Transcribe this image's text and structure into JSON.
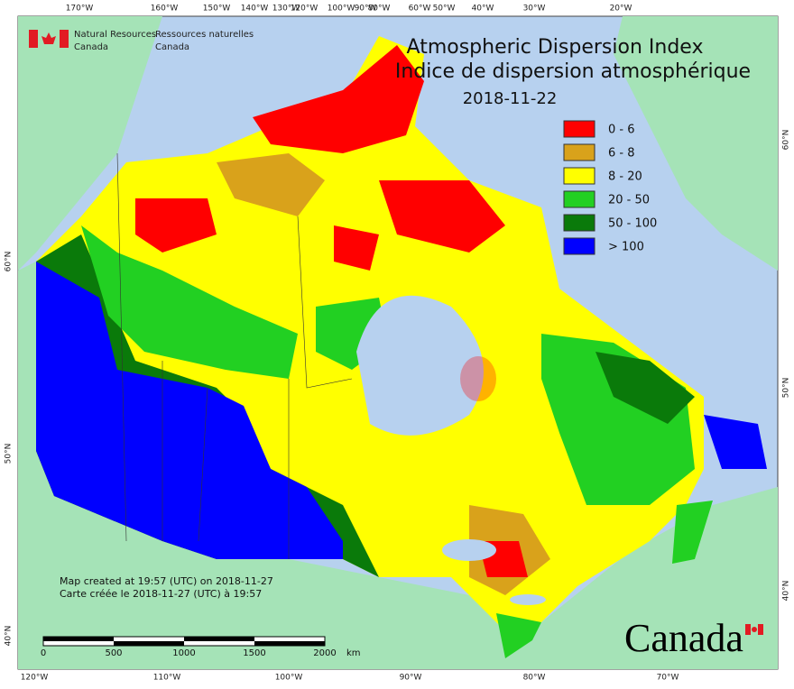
{
  "header": {
    "agency_en": [
      "Natural Resources",
      "Canada"
    ],
    "agency_fr": [
      "Ressources naturelles",
      "Canada"
    ]
  },
  "title": {
    "en": "Atmospheric Dispersion Index",
    "fr": "Indice de dispersion atmosphérique",
    "date": "2018-11-22"
  },
  "legend": [
    {
      "label": "0 - 6",
      "color": "#ff0000"
    },
    {
      "label": "6 - 8",
      "color": "#d9a21b"
    },
    {
      "label": "8 - 20",
      "color": "#ffff00"
    },
    {
      "label": "20 - 50",
      "color": "#22d022"
    },
    {
      "label": "50 - 100",
      "color": "#0a7a0a"
    },
    {
      "label": "> 100",
      "color": "#0000ff"
    }
  ],
  "graticule": {
    "top": [
      "170°W",
      "160°W",
      "150°W",
      "140°W",
      "130°W",
      "120°W",
      "100°W",
      "90°W",
      "80°W",
      "60°W",
      "50°W",
      "40°W",
      "30°W",
      "20°W"
    ],
    "bottom": [
      "120°W",
      "110°W",
      "100°W",
      "90°W",
      "80°W",
      "70°W"
    ],
    "left": [
      "60°N",
      "50°N",
      "40°N"
    ],
    "right": [
      "60°N",
      "50°N",
      "40°N"
    ]
  },
  "credits": [
    "Map created at 19:57 (UTC) on 2018-11-27",
    "Carte créée le 2018-11-27 (UTC) à 19:57"
  ],
  "scale_bar": [
    "0",
    "500",
    "1000",
    "1500",
    "2000",
    "km"
  ],
  "wordmark": "Canada"
}
